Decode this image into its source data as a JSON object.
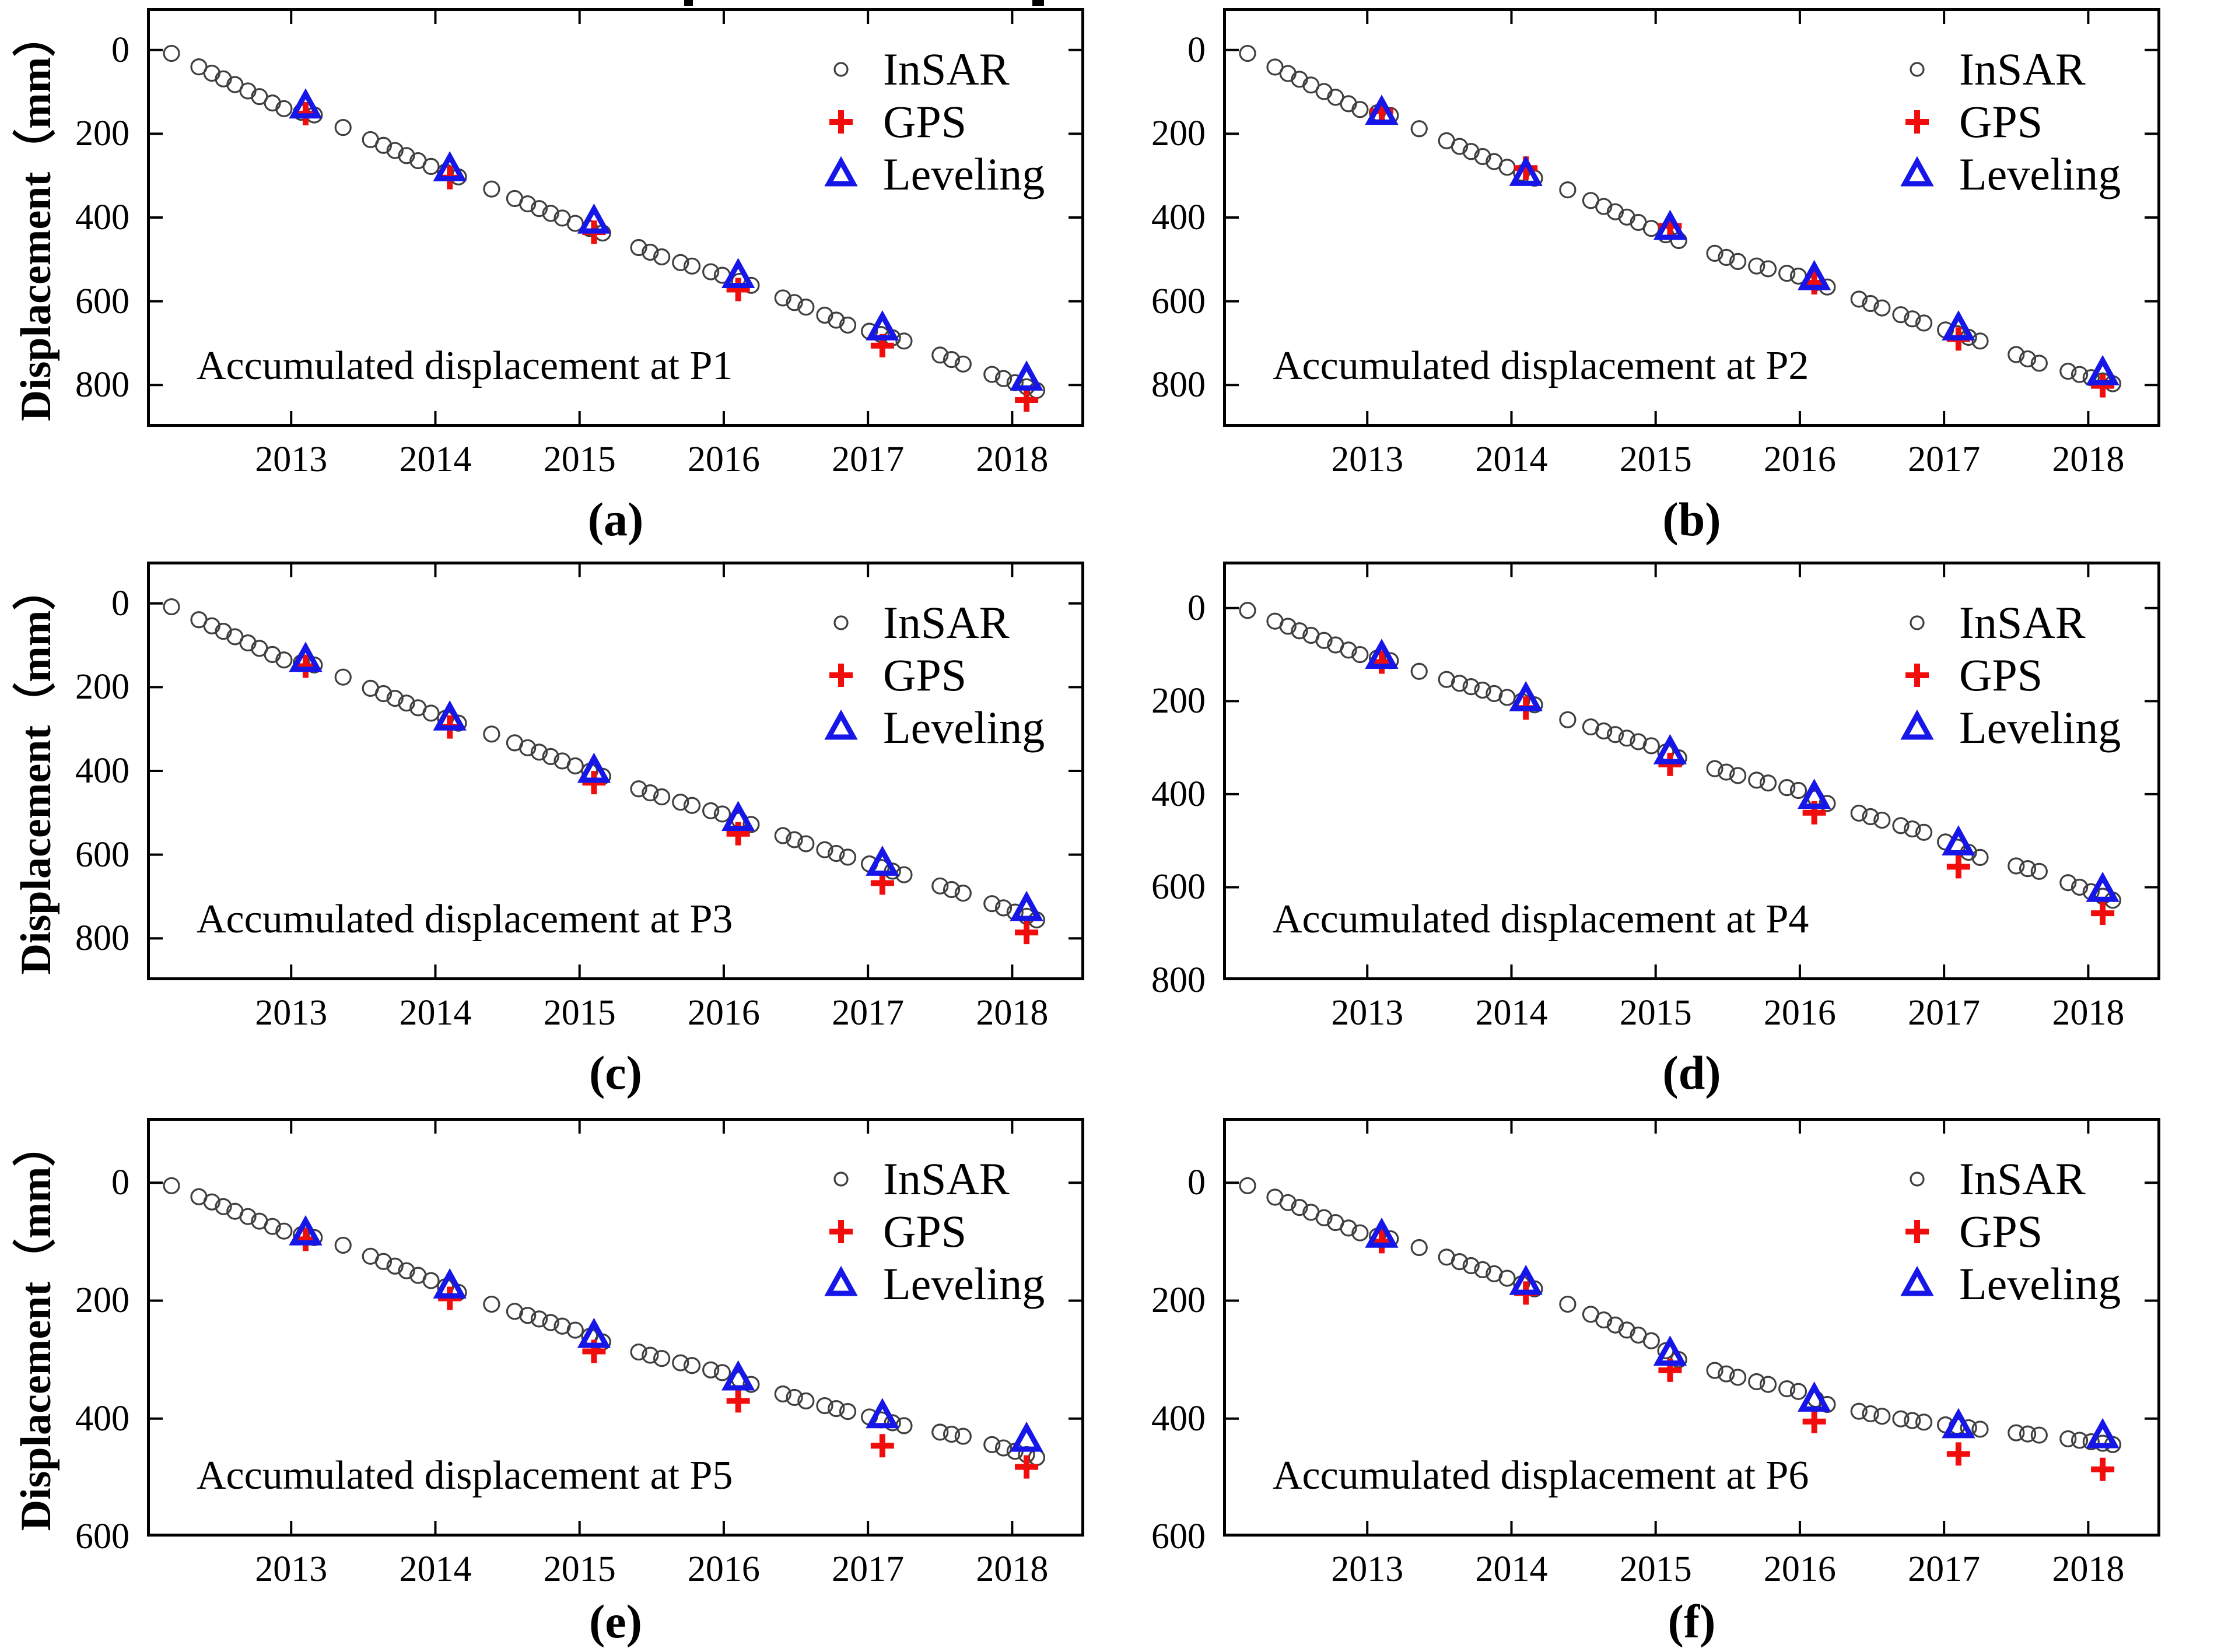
{
  "figure_title": "",
  "chart_data": {
    "type": "scatter",
    "title": "",
    "xlabel": "",
    "ylabel": "Displacement（mm）",
    "grid": "off",
    "legend_position": "upper right",
    "legend": [
      {
        "series": "insar",
        "label": "InSAR",
        "marker": "open-circle",
        "color": "#3f3f3f"
      },
      {
        "series": "gps",
        "label": "GPS",
        "marker": "plus",
        "color": "#f20d0d"
      },
      {
        "series": "leveling",
        "label": "Leveling",
        "marker": "open-triangle",
        "color": "#1616e8"
      }
    ],
    "colors": {
      "axis": "#000000",
      "text": "#000000",
      "background": "#ffffff"
    },
    "xlim": [
      2012.0,
      2018.5
    ],
    "x_ticks": [
      "2013",
      "2014",
      "2015",
      "2016",
      "2017",
      "2018"
    ],
    "x_tick_years": [
      2013,
      2014,
      2015,
      2016,
      2017,
      2018
    ],
    "marker_years": [
      2013.1,
      2014.1,
      2015.1,
      2016.1,
      2017.1,
      2018.1
    ],
    "insar_sample_times": [
      2012.17,
      2012.36,
      2012.45,
      2012.53,
      2012.61,
      2012.7,
      2012.78,
      2012.87,
      2012.95,
      2013.07,
      2013.16,
      2013.36,
      2013.55,
      2013.64,
      2013.72,
      2013.8,
      2013.88,
      2013.97,
      2014.07,
      2014.16,
      2014.39,
      2014.55,
      2014.64,
      2014.72,
      2014.8,
      2014.88,
      2014.97,
      2015.07,
      2015.16,
      2015.41,
      2015.49,
      2015.57,
      2015.7,
      2015.78,
      2015.91,
      2015.99,
      2016.11,
      2016.19,
      2016.41,
      2016.49,
      2016.57,
      2016.7,
      2016.78,
      2016.86,
      2017.01,
      2017.09,
      2017.17,
      2017.25,
      2017.5,
      2017.58,
      2017.66,
      2017.86,
      2017.94,
      2018.02,
      2018.1,
      2018.17
    ],
    "insar_anchor_times": [
      2012.17,
      2012.95,
      2013.16,
      2013.36,
      2013.97,
      2014.16,
      2014.39,
      2014.97,
      2015.16,
      2015.57,
      2015.99,
      2016.19,
      2016.57,
      2016.86,
      2017.25,
      2017.66,
      2018.17
    ],
    "panels": [
      {
        "id": "a",
        "caption": "(a)",
        "point": "P1",
        "annotation": "Accumulated displacement at P1",
        "col": 0,
        "row": 0,
        "show_y_axis_label": true,
        "ylim": [
          -100,
          900
        ],
        "y_ticks": [
          0,
          200,
          400,
          600,
          800
        ],
        "insar_anchor_values": [
          8,
          140,
          155,
          185,
          278,
          303,
          332,
          414,
          437,
          494,
          538,
          562,
          614,
          657,
          695,
          750,
          813
        ],
        "leveling": [
          135,
          285,
          410,
          540,
          665,
          785
        ],
        "gps": [
          152,
          305,
          435,
          572,
          706,
          836
        ]
      },
      {
        "id": "b",
        "caption": "(b)",
        "point": "P2",
        "annotation": "Accumulated displacement at P2",
        "col": 1,
        "row": 0,
        "show_y_axis_label": false,
        "ylim": [
          -100,
          900
        ],
        "y_ticks": [
          0,
          200,
          400,
          600,
          800
        ],
        "insar_anchor_values": [
          8,
          142,
          156,
          188,
          280,
          306,
          334,
          426,
          455,
          505,
          540,
          566,
          616,
          652,
          695,
          748,
          797
        ],
        "leveling": [
          150,
          296,
          425,
          545,
          665,
          772
        ],
        "gps": [
          146,
          282,
          420,
          556,
          690,
          802
        ]
      },
      {
        "id": "c",
        "caption": "(c)",
        "point": "P3",
        "annotation": "Accumulated displacement at P3",
        "col": 0,
        "row": 1,
        "show_y_axis_label": true,
        "ylim": [
          -100,
          900
        ],
        "y_ticks": [
          0,
          200,
          400,
          600,
          800
        ],
        "insar_anchor_values": [
          8,
          135,
          147,
          176,
          262,
          286,
          312,
          388,
          413,
          462,
          503,
          528,
          574,
          606,
          648,
          692,
          756
        ],
        "leveling": [
          135,
          275,
          400,
          515,
          622,
          730
        ],
        "gps": [
          150,
          295,
          428,
          550,
          668,
          786
        ]
      },
      {
        "id": "d",
        "caption": "(d)",
        "point": "P4",
        "annotation": "Accumulated displacement at P4",
        "col": 1,
        "row": 1,
        "show_y_axis_label": false,
        "ylim": [
          -100,
          800
        ],
        "y_ticks": [
          0,
          200,
          400,
          600,
          800
        ],
        "insar_anchor_values": [
          5,
          100,
          113,
          136,
          192,
          208,
          240,
          296,
          322,
          360,
          392,
          420,
          456,
          482,
          536,
          566,
          628
        ],
        "leveling": [
          105,
          196,
          310,
          406,
          506,
          606
        ],
        "gps": [
          116,
          215,
          336,
          440,
          556,
          656
        ]
      },
      {
        "id": "e",
        "caption": "(e)",
        "point": "P5",
        "annotation": "Accumulated displacement at P5",
        "col": 0,
        "row": 2,
        "show_y_axis_label": true,
        "ylim": [
          -110,
          600
        ],
        "y_ticks": [
          0,
          200,
          400,
          600
        ],
        "insar_anchor_values": [
          5,
          82,
          93,
          106,
          166,
          186,
          206,
          250,
          270,
          298,
          322,
          342,
          370,
          388,
          412,
          430,
          466
        ],
        "leveling": [
          86,
          176,
          260,
          332,
          396,
          436
        ],
        "gps": [
          96,
          196,
          286,
          370,
          446,
          482
        ]
      },
      {
        "id": "f",
        "caption": "(f)",
        "point": "P6",
        "annotation": "Accumulated displacement at P6",
        "col": 1,
        "row": 2,
        "show_y_axis_label": false,
        "ylim": [
          -110,
          600
        ],
        "y_ticks": [
          0,
          200,
          400,
          600
        ],
        "insar_anchor_values": [
          5,
          85,
          95,
          110,
          162,
          180,
          206,
          268,
          300,
          330,
          354,
          376,
          396,
          406,
          418,
          428,
          444
        ],
        "leveling": [
          90,
          170,
          290,
          368,
          413,
          430
        ],
        "gps": [
          100,
          187,
          318,
          405,
          460,
          486
        ]
      }
    ]
  }
}
